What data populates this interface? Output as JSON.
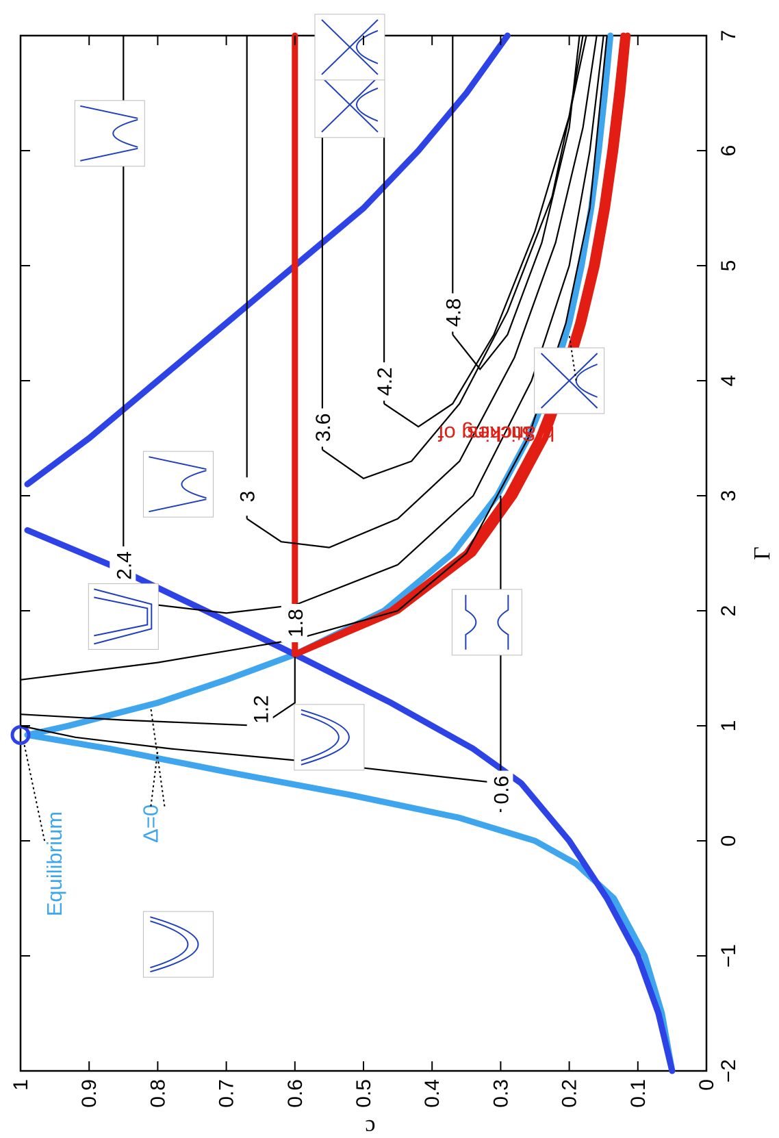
{
  "chart_data": {
    "type": "line",
    "title": "",
    "xlabel": "Γ",
    "ylabel": "c",
    "xlim": [
      -2,
      7
    ],
    "ylim": [
      0,
      1
    ],
    "x_ticks": [
      "−2",
      "−1",
      "0",
      "1",
      "2",
      "3",
      "4",
      "5",
      "6",
      "7"
    ],
    "y_ticks": [
      "0",
      "0.1",
      "0.2",
      "0.3",
      "0.4",
      "0.5",
      "0.6",
      "0.7",
      "0.8",
      "0.9",
      "1"
    ],
    "grid": false,
    "legend": "none",
    "orientation": "rotated 90° counter-clockwise",
    "colors": {
      "light_blue": "#3fa6ee",
      "dark_blue": "#2e43e6",
      "red": "#e21e14",
      "black": "#000000",
      "inset_line": "#1f3fbf"
    },
    "series": [
      {
        "kind": "light-blue-thick",
        "points": [
          [
            -2,
            0.05
          ],
          [
            -1.5,
            0.065
          ],
          [
            -1,
            0.09
          ],
          [
            -0.5,
            0.135
          ],
          [
            -0.2,
            0.19
          ],
          [
            0,
            0.25
          ],
          [
            0.2,
            0.36
          ],
          [
            0.4,
            0.52
          ],
          [
            0.6,
            0.7
          ],
          [
            0.8,
            0.87
          ],
          [
            0.92,
            0.99
          ]
        ]
      },
      {
        "kind": "light-blue-thick",
        "points": [
          [
            0.92,
            0.99
          ],
          [
            1.0,
            0.93
          ],
          [
            1.2,
            0.8
          ],
          [
            1.4,
            0.7
          ],
          [
            1.62,
            0.6
          ],
          [
            2.0,
            0.47
          ],
          [
            2.5,
            0.37
          ],
          [
            3.0,
            0.305
          ],
          [
            3.5,
            0.26
          ],
          [
            4.0,
            0.225
          ],
          [
            4.5,
            0.2
          ],
          [
            5.0,
            0.182
          ],
          [
            5.5,
            0.168
          ],
          [
            6.0,
            0.157
          ],
          [
            6.5,
            0.148
          ],
          [
            7.0,
            0.14
          ]
        ]
      },
      {
        "kind": "dark-blue-thick",
        "points": [
          [
            -2,
            0.05
          ],
          [
            -1.5,
            0.07
          ],
          [
            -1,
            0.1
          ],
          [
            -0.5,
            0.145
          ],
          [
            0,
            0.2
          ],
          [
            0.5,
            0.27
          ],
          [
            0.8,
            0.34
          ],
          [
            1.2,
            0.46
          ],
          [
            1.62,
            0.6
          ],
          [
            2.0,
            0.73
          ],
          [
            2.4,
            0.87
          ],
          [
            2.7,
            0.99
          ]
        ]
      },
      {
        "kind": "dark-blue-thick",
        "points": [
          [
            3.1,
            0.99
          ],
          [
            3.5,
            0.9
          ],
          [
            4.0,
            0.8
          ],
          [
            4.5,
            0.7
          ],
          [
            5.0,
            0.6
          ],
          [
            5.5,
            0.5
          ],
          [
            6.0,
            0.42
          ],
          [
            6.5,
            0.35
          ],
          [
            7.0,
            0.29
          ]
        ]
      },
      {
        "kind": "red-thick",
        "points": [
          [
            1.62,
            0.6
          ],
          [
            7.0,
            0.6
          ]
        ]
      },
      {
        "kind": "red-thick",
        "points": [
          [
            1.62,
            0.6
          ],
          [
            2.0,
            0.45
          ],
          [
            2.5,
            0.34
          ],
          [
            3.0,
            0.28
          ],
          [
            3.5,
            0.235
          ],
          [
            4.0,
            0.205
          ],
          [
            4.5,
            0.18
          ],
          [
            5.0,
            0.16
          ],
          [
            5.5,
            0.145
          ],
          [
            6.0,
            0.133
          ],
          [
            6.5,
            0.123
          ],
          [
            7.0,
            0.115
          ]
        ]
      },
      {
        "kind": "red-thick",
        "points": [
          [
            1.62,
            0.6
          ],
          [
            2.0,
            0.46
          ],
          [
            2.5,
            0.35
          ],
          [
            3.0,
            0.29
          ],
          [
            3.5,
            0.245
          ],
          [
            4.0,
            0.212
          ],
          [
            4.5,
            0.187
          ],
          [
            5.0,
            0.167
          ],
          [
            5.5,
            0.152
          ],
          [
            6.0,
            0.14
          ],
          [
            6.5,
            0.13
          ],
          [
            7.0,
            0.121
          ]
        ]
      }
    ],
    "contours": [
      {
        "label": "0.6",
        "points": [
          [
            0.25,
            0.3
          ],
          [
            0.5,
            0.3
          ],
          [
            0.6,
            0.45
          ],
          [
            0.7,
            0.6
          ],
          [
            0.8,
            0.78
          ],
          [
            0.9,
            0.92
          ],
          [
            1.0,
            1.0
          ]
        ],
        "flat": [
          [
            0.25,
            0.3
          ],
          [
            3.0,
            0.3
          ]
        ]
      },
      {
        "label": "1.2",
        "points": [
          [
            1.6,
            0.6
          ],
          [
            1.2,
            0.6
          ],
          [
            1.0,
            0.65
          ],
          [
            1.05,
            0.85
          ],
          [
            1.1,
            1.0
          ]
        ]
      },
      {
        "label": "1.8",
        "points": [
          [
            1.4,
            1.0
          ],
          [
            1.55,
            0.8
          ],
          [
            1.75,
            0.6
          ],
          [
            2.0,
            0.45
          ],
          [
            2.5,
            0.35
          ],
          [
            3.5,
            0.26
          ],
          [
            4.5,
            0.205
          ],
          [
            5.5,
            0.17
          ],
          [
            7.0,
            0.145
          ]
        ]
      },
      {
        "label": "2.4",
        "points": [
          [
            2.2,
            0.85
          ],
          [
            2.05,
            0.8
          ],
          [
            1.98,
            0.7
          ],
          [
            2.05,
            0.6
          ],
          [
            2.4,
            0.45
          ],
          [
            3.0,
            0.34
          ],
          [
            4.0,
            0.255
          ],
          [
            5.0,
            0.2
          ],
          [
            6.0,
            0.17
          ],
          [
            7.0,
            0.15
          ]
        ],
        "flat": [
          [
            2.2,
            0.85
          ],
          [
            7.0,
            0.85
          ]
        ]
      },
      {
        "label": "3",
        "points": [
          [
            2.8,
            0.67
          ],
          [
            2.6,
            0.62
          ],
          [
            2.55,
            0.55
          ],
          [
            2.8,
            0.45
          ],
          [
            3.3,
            0.36
          ],
          [
            4.2,
            0.28
          ],
          [
            5.2,
            0.22
          ],
          [
            6.2,
            0.18
          ],
          [
            7.0,
            0.16
          ]
        ],
        "flat": [
          [
            2.8,
            0.67
          ],
          [
            7.0,
            0.67
          ]
        ]
      },
      {
        "label": "3.6",
        "points": [
          [
            3.4,
            0.56
          ],
          [
            3.15,
            0.5
          ],
          [
            3.3,
            0.43
          ],
          [
            3.8,
            0.36
          ],
          [
            4.6,
            0.29
          ],
          [
            5.6,
            0.225
          ],
          [
            7.0,
            0.175
          ]
        ],
        "flat": [
          [
            3.4,
            0.56
          ],
          [
            7.0,
            0.56
          ]
        ]
      },
      {
        "label": "4.2",
        "points": [
          [
            3.8,
            0.47
          ],
          [
            3.6,
            0.42
          ],
          [
            3.8,
            0.37
          ],
          [
            4.4,
            0.31
          ],
          [
            5.3,
            0.25
          ],
          [
            6.3,
            0.2
          ],
          [
            7.0,
            0.18
          ]
        ],
        "flat": [
          [
            3.8,
            0.47
          ],
          [
            7.0,
            0.47
          ]
        ]
      },
      {
        "label": "4.8",
        "points": [
          [
            4.4,
            0.37
          ],
          [
            4.1,
            0.33
          ],
          [
            4.4,
            0.29
          ],
          [
            5.2,
            0.24
          ],
          [
            6.2,
            0.2
          ],
          [
            7.0,
            0.185
          ]
        ],
        "flat": [
          [
            4.4,
            0.37
          ],
          [
            7.0,
            0.37
          ]
        ]
      }
    ],
    "special_points": [
      {
        "name": "equilibrium",
        "x": 0.92,
        "y": 1.0
      },
      {
        "name": "triple-point",
        "x": 1.62,
        "y": 0.6
      }
    ],
    "annotations": [
      {
        "text": "Equilibrium",
        "color": "#3fa6ee"
      },
      {
        "text": "Δ=0",
        "color": "#3fa6ee"
      },
      {
        "text": "Sticking of",
        "color": "#e21e14"
      },
      {
        "text": "branches",
        "color": "#e21e14"
      }
    ]
  }
}
